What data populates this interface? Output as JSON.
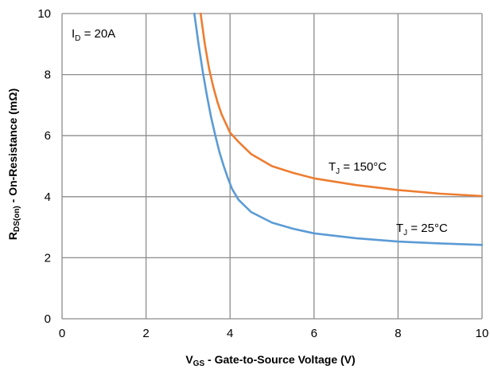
{
  "chart_data": {
    "type": "line",
    "xlabel": {
      "main": "V",
      "sub": "GS",
      "rest": " - Gate-to-Source Voltage (V)"
    },
    "ylabel": {
      "main": "R",
      "sub": "DS(on)",
      "rest": " - On-Resistance (mΩ)"
    },
    "xlim": [
      0,
      10
    ],
    "ylim": [
      0,
      10
    ],
    "xticks": [
      "0",
      "2",
      "4",
      "6",
      "8",
      "10"
    ],
    "yticks": [
      "0",
      "2",
      "4",
      "6",
      "8",
      "10"
    ],
    "grid": true,
    "annotations": {
      "condition": {
        "main": "I",
        "sub": "D",
        "rest": " = 20A"
      },
      "hot": {
        "main": "T",
        "sub": "J",
        "rest": " = 150°C"
      },
      "cold": {
        "main": "T",
        "sub": "J",
        "rest": " = 25°C"
      }
    },
    "series": [
      {
        "name": "T_J = 150°C",
        "color": "#ED7D31",
        "x": [
          3.3,
          3.4,
          3.5,
          3.6,
          3.7,
          3.8,
          3.9,
          4.0,
          4.2,
          4.5,
          5.0,
          5.5,
          6.0,
          7.0,
          8.0,
          9.0,
          10.0
        ],
        "y": [
          10.0,
          9.0,
          8.2,
          7.6,
          7.1,
          6.7,
          6.4,
          6.1,
          5.8,
          5.4,
          5.0,
          4.78,
          4.6,
          4.38,
          4.22,
          4.1,
          4.02
        ]
      },
      {
        "name": "T_J = 25°C",
        "color": "#5B9BD5",
        "x": [
          3.15,
          3.25,
          3.35,
          3.45,
          3.55,
          3.65,
          3.75,
          3.85,
          3.95,
          4.05,
          4.2,
          4.5,
          5.0,
          5.5,
          6.0,
          7.0,
          8.0,
          9.0,
          10.0
        ],
        "y": [
          10.0,
          9.0,
          8.1,
          7.3,
          6.6,
          6.0,
          5.45,
          5.0,
          4.6,
          4.25,
          3.9,
          3.5,
          3.15,
          2.95,
          2.8,
          2.64,
          2.53,
          2.47,
          2.42
        ]
      }
    ]
  }
}
